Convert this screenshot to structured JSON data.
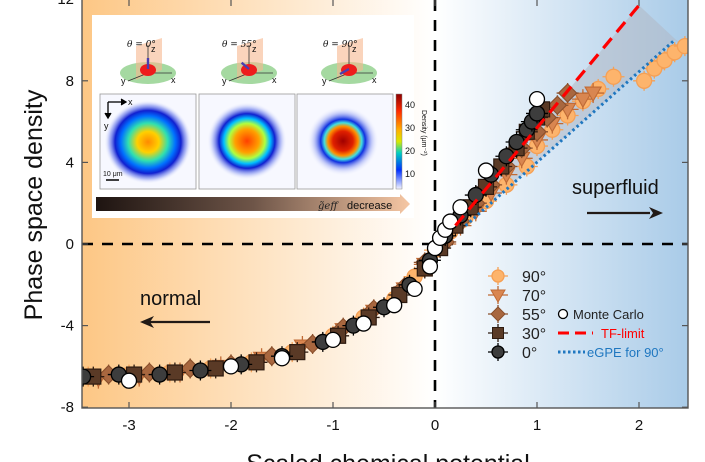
{
  "chart_data": {
    "type": "scatter",
    "title": "",
    "xlabel": "Scaled chemical potential",
    "ylabel": "Phase space density",
    "xlim": [
      -3.46,
      2.48
    ],
    "ylim": [
      -8,
      12
    ],
    "xticks": [
      -3,
      -2,
      -1,
      0,
      1,
      2
    ],
    "yticks": [
      -8,
      -4,
      0,
      4,
      8,
      12
    ],
    "xtick_labels": [
      "-3",
      "-2",
      "-1",
      "0",
      "1",
      "2"
    ],
    "ytick_labels": [
      "-8",
      "-4",
      "0",
      "4",
      "8",
      "12"
    ],
    "grid": false,
    "legend_placement": "bottom-right",
    "background": {
      "left_color": "#fdc785",
      "right_color": "#a9cbe8",
      "split_x": 0
    },
    "reference_lines": [
      {
        "orientation": "vertical",
        "x": 0,
        "style": "dashed",
        "color": "#000000"
      },
      {
        "orientation": "horizontal",
        "y": 0,
        "style": "dashed",
        "color": "#000000"
      }
    ],
    "region_labels": [
      {
        "text": "normal",
        "arrow": "left",
        "x": -2.3,
        "y": -2.6
      },
      {
        "text": "superfluid",
        "arrow": "right",
        "x": 1.85,
        "y": 1.6
      }
    ],
    "series": [
      {
        "name": "90°",
        "marker": "circle",
        "color": "#fdb46c",
        "edge": "#f5a055",
        "errorbars": true,
        "points": [
          [
            -3.4,
            -6.5
          ],
          [
            -3.0,
            -6.4
          ],
          [
            -2.6,
            -6.3
          ],
          [
            -2.2,
            -6.1
          ],
          [
            -1.8,
            -5.8
          ],
          [
            -1.4,
            -5.3
          ],
          [
            -1.0,
            -4.5
          ],
          [
            -0.7,
            -3.6
          ],
          [
            -0.4,
            -2.7
          ],
          [
            -0.2,
            -1.6
          ],
          [
            0.0,
            -0.3
          ],
          [
            0.15,
            0.6
          ],
          [
            0.3,
            1.3
          ],
          [
            0.5,
            2.1
          ],
          [
            0.7,
            2.9
          ],
          [
            0.9,
            3.8
          ],
          [
            1.0,
            4.8
          ],
          [
            1.15,
            5.6
          ],
          [
            1.3,
            6.3
          ],
          [
            1.45,
            7.0
          ],
          [
            1.6,
            7.6
          ],
          [
            1.75,
            8.2
          ],
          [
            2.05,
            8.0
          ],
          [
            2.15,
            8.6
          ],
          [
            2.25,
            9.0
          ],
          [
            2.35,
            9.4
          ],
          [
            2.45,
            9.7
          ]
        ]
      },
      {
        "name": "70°",
        "marker": "triangle-down",
        "color": "#d98650",
        "edge": "#c06a35",
        "errorbars": true,
        "points": [
          [
            -3.3,
            -6.6
          ],
          [
            -2.9,
            -6.5
          ],
          [
            -2.5,
            -6.3
          ],
          [
            -2.1,
            -6.0
          ],
          [
            -1.7,
            -5.6
          ],
          [
            -1.3,
            -5.0
          ],
          [
            -0.9,
            -4.2
          ],
          [
            -0.6,
            -3.3
          ],
          [
            -0.3,
            -2.2
          ],
          [
            -0.1,
            -1.0
          ],
          [
            0.1,
            0.0
          ],
          [
            0.25,
            0.9
          ],
          [
            0.4,
            1.6
          ],
          [
            0.55,
            2.5
          ],
          [
            0.7,
            3.4
          ],
          [
            0.85,
            4.2
          ],
          [
            1.0,
            5.1
          ],
          [
            1.15,
            5.9
          ],
          [
            1.3,
            6.6
          ],
          [
            1.45,
            7.1
          ],
          [
            1.55,
            7.4
          ]
        ]
      },
      {
        "name": "55°",
        "marker": "diamond",
        "color": "#a8673f",
        "edge": "#8a4f2b",
        "errorbars": true,
        "points": [
          [
            -3.2,
            -6.4
          ],
          [
            -2.8,
            -6.3
          ],
          [
            -2.4,
            -6.1
          ],
          [
            -2.0,
            -5.9
          ],
          [
            -1.6,
            -5.5
          ],
          [
            -1.2,
            -4.9
          ],
          [
            -0.9,
            -4.1
          ],
          [
            -0.6,
            -3.2
          ],
          [
            -0.3,
            -2.1
          ],
          [
            -0.1,
            -0.9
          ],
          [
            0.1,
            0.1
          ],
          [
            0.25,
            1.1
          ],
          [
            0.4,
            2.0
          ],
          [
            0.55,
            2.9
          ],
          [
            0.7,
            3.8
          ],
          [
            0.85,
            4.7
          ],
          [
            1.0,
            5.5
          ],
          [
            1.1,
            6.2
          ],
          [
            1.2,
            6.8
          ],
          [
            1.3,
            7.4
          ]
        ]
      },
      {
        "name": "30°",
        "marker": "square",
        "color": "#5a3a26",
        "edge": "#2e1b10",
        "errorbars": true,
        "points": [
          [
            -3.35,
            -6.5
          ],
          [
            -2.95,
            -6.4
          ],
          [
            -2.55,
            -6.3
          ],
          [
            -2.15,
            -6.1
          ],
          [
            -1.75,
            -5.8
          ],
          [
            -1.35,
            -5.3
          ],
          [
            -0.95,
            -4.5
          ],
          [
            -0.65,
            -3.6
          ],
          [
            -0.35,
            -2.5
          ],
          [
            -0.1,
            -1.2
          ],
          [
            0.05,
            -0.2
          ],
          [
            0.2,
            0.9
          ],
          [
            0.35,
            1.8
          ],
          [
            0.5,
            2.8
          ],
          [
            0.65,
            3.8
          ],
          [
            0.8,
            4.7
          ],
          [
            0.9,
            5.5
          ],
          [
            1.0,
            6.2
          ],
          [
            1.05,
            6.6
          ]
        ]
      },
      {
        "name": "0°",
        "marker": "circle",
        "color": "#3d3d3d",
        "edge": "#000000",
        "errorbars": true,
        "points": [
          [
            -3.45,
            -6.5
          ],
          [
            -3.1,
            -6.4
          ],
          [
            -2.7,
            -6.4
          ],
          [
            -2.3,
            -6.2
          ],
          [
            -1.9,
            -5.9
          ],
          [
            -1.5,
            -5.5
          ],
          [
            -1.1,
            -4.8
          ],
          [
            -0.8,
            -4.0
          ],
          [
            -0.5,
            -3.1
          ],
          [
            -0.25,
            -2.0
          ],
          [
            -0.05,
            -0.8
          ],
          [
            0.1,
            0.4
          ],
          [
            0.25,
            1.4
          ],
          [
            0.4,
            2.4
          ],
          [
            0.55,
            3.4
          ],
          [
            0.7,
            4.3
          ],
          [
            0.8,
            5.0
          ],
          [
            0.9,
            5.6
          ],
          [
            0.95,
            6.0
          ],
          [
            1.0,
            6.4
          ]
        ]
      },
      {
        "name": "Monte Carlo",
        "marker": "circle",
        "color": "#ffffff",
        "edge": "#000000",
        "errorbars": false,
        "points": [
          [
            -3.0,
            -6.7
          ],
          [
            -2.0,
            -6.0
          ],
          [
            -1.5,
            -5.6
          ],
          [
            -1.0,
            -4.7
          ],
          [
            -0.7,
            -3.9
          ],
          [
            -0.4,
            -3.0
          ],
          [
            -0.2,
            -2.2
          ],
          [
            -0.05,
            -1.1
          ],
          [
            0.0,
            -0.2
          ],
          [
            0.05,
            0.3
          ],
          [
            0.1,
            0.7
          ],
          [
            0.15,
            1.1
          ],
          [
            0.25,
            1.8
          ],
          [
            0.5,
            3.6
          ],
          [
            1.0,
            7.1
          ]
        ]
      }
    ],
    "lines": [
      {
        "name": "TF-limit",
        "style": "dashed",
        "color": "#ff0000",
        "points": [
          [
            0.2,
            0.9
          ],
          [
            2.0,
            11.7
          ]
        ]
      },
      {
        "name": "eGPE for 90°",
        "style": "dotted",
        "color": "#1f77c0",
        "points": [
          [
            0.3,
            0.9
          ],
          [
            2.35,
            10.0
          ]
        ]
      }
    ],
    "shaded_band": {
      "color": "#b0b8c4",
      "opacity": 0.55,
      "upper": [
        [
          0.2,
          0.9
        ],
        [
          2.0,
          11.7
        ]
      ],
      "lower": [
        [
          0.3,
          0.9
        ],
        [
          2.35,
          10.0
        ]
      ],
      "cap": [
        [
          2.0,
          11.7
        ],
        [
          2.45,
          9.6
        ]
      ]
    }
  },
  "legend": {
    "entries_left": [
      "90°",
      "70°",
      "55°",
      "30°",
      "0°"
    ],
    "entries_right": [
      "Monte Carlo",
      "TF-limit",
      "eGPE for 90°"
    ]
  },
  "inset": {
    "angles": [
      "θ = 0°",
      "θ = 55°",
      "θ = 90°"
    ],
    "axis_labels": {
      "x": "x",
      "y": "y",
      "z": "z"
    },
    "scale_bar": "10 μm",
    "colorbar_ticks": [
      "40",
      "30",
      "20",
      "10"
    ],
    "colorbar_label": "Density (μm⁻²)",
    "arrow_label_symbol": "g̃eff",
    "arrow_label_text": "decrease"
  }
}
